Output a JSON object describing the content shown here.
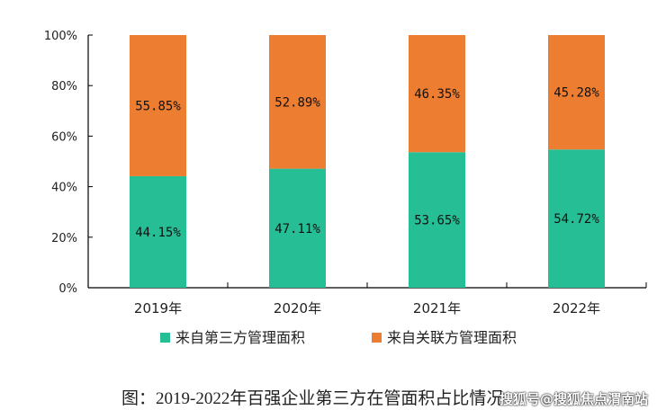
{
  "chart_data": {
    "type": "bar",
    "stacked": true,
    "categories": [
      "2019年",
      "2020年",
      "2021年",
      "2022年"
    ],
    "series": [
      {
        "name": "来自第三方管理面积",
        "color": "#26BE94",
        "values": [
          44.15,
          47.11,
          53.65,
          54.72
        ],
        "labels": [
          "44.15%",
          "47.11%",
          "53.65%",
          "54.72%"
        ]
      },
      {
        "name": "来自关联方管理面积",
        "color": "#ED7D31",
        "values": [
          55.85,
          52.89,
          46.35,
          45.28
        ],
        "labels": [
          "55.85%",
          "52.89%",
          "46.35%",
          "45.28%"
        ]
      }
    ],
    "ylim": [
      0,
      100
    ],
    "yticks": [
      "0%",
      "20%",
      "40%",
      "60%",
      "80%",
      "100%"
    ],
    "legend_position": "bottom",
    "grid": false
  },
  "caption": "图：2019-2022年百强企业第三方在管面积占比情况",
  "watermark": "搜狐号@搜狐焦点渭南站"
}
